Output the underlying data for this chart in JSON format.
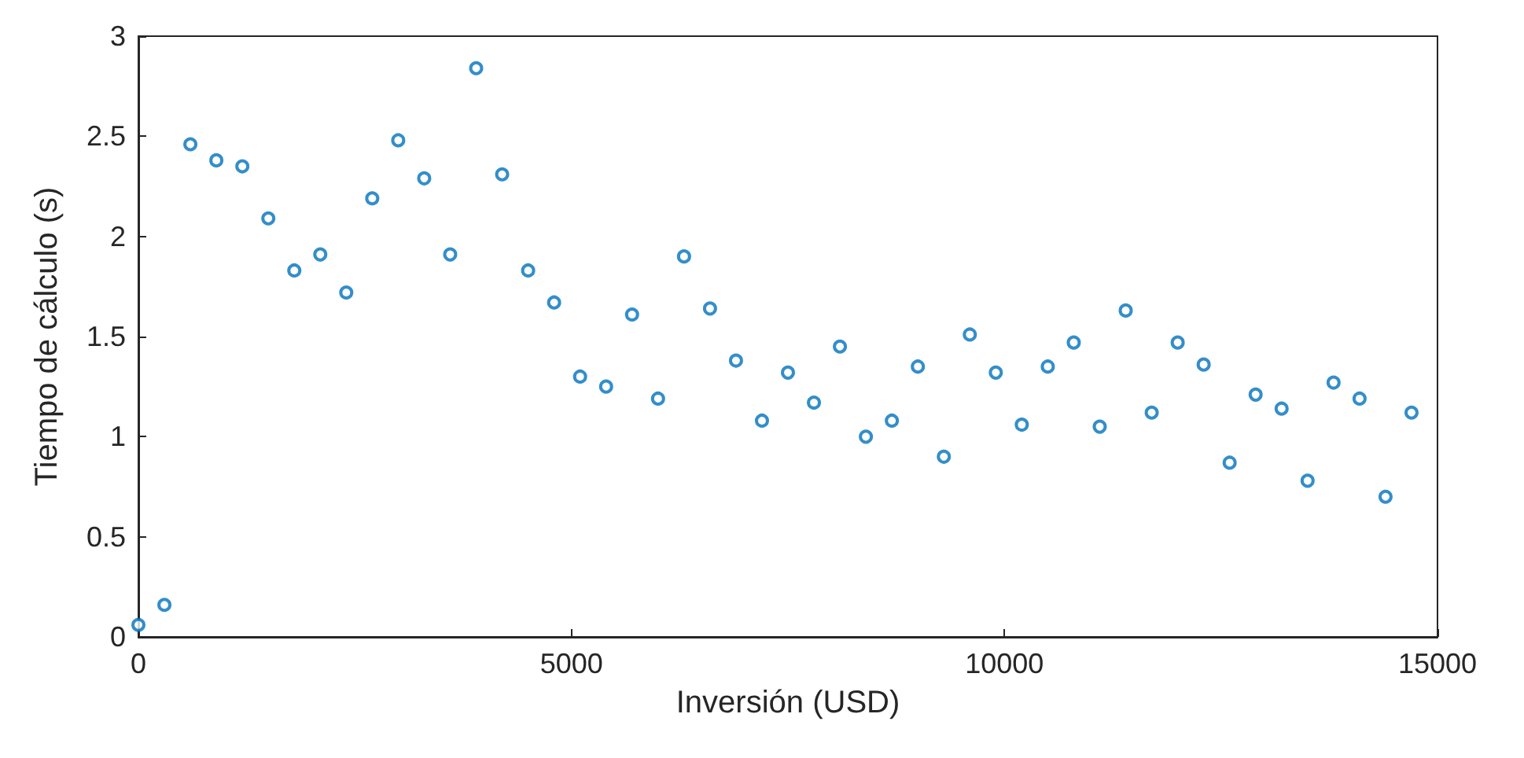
{
  "chart_data": {
    "type": "scatter",
    "xlabel": "Inversión (USD)",
    "ylabel": "Tiempo de cálculo (s)",
    "x": [
      0,
      300,
      600,
      900,
      1200,
      1500,
      1800,
      2100,
      2400,
      2700,
      3000,
      3300,
      3600,
      3900,
      4200,
      4500,
      4800,
      5100,
      5400,
      5700,
      6000,
      6300,
      6600,
      6900,
      7200,
      7500,
      7800,
      8100,
      8400,
      8700,
      9000,
      9300,
      9600,
      9900,
      10200,
      10500,
      10800,
      11100,
      11400,
      11700,
      12000,
      12300,
      12600,
      12900,
      13200,
      13500,
      13800,
      14100,
      14400,
      14700
    ],
    "series": [
      {
        "color": "#0072bd",
        "values": [
          0.06,
          0.16,
          2.46,
          2.38,
          2.35,
          2.09,
          1.83,
          1.91,
          1.72,
          2.19,
          2.48,
          2.29,
          1.91,
          2.84,
          2.31,
          1.83,
          1.67,
          1.3,
          1.25,
          1.61,
          1.19,
          1.9,
          1.64,
          1.38,
          1.08,
          1.32,
          1.17,
          1.45,
          1.0,
          1.08,
          1.35,
          0.9,
          1.51,
          1.32,
          1.06,
          1.35,
          1.47,
          1.05,
          1.63,
          1.12,
          1.47,
          1.36,
          0.87,
          1.21,
          1.14,
          0.78,
          1.27,
          1.19,
          0.7,
          1.12
        ]
      }
    ],
    "xlim": [
      0,
      15000
    ],
    "xticks": [
      0,
      5000,
      10000,
      15000
    ],
    "ylim": [
      0,
      3
    ],
    "yticks": [
      0,
      0.5,
      1,
      1.5,
      2,
      2.5,
      3
    ],
    "marker": "circle",
    "grid": false
  }
}
